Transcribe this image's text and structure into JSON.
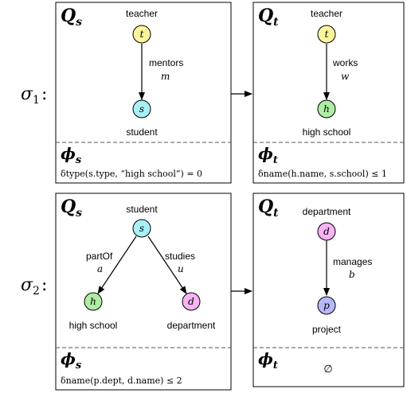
{
  "rules": [
    {
      "label_sym": "σ",
      "label_sub": "1",
      "label_colon": ":",
      "source": {
        "pattern_sym": "Q",
        "pattern_sub": "s",
        "nodes": [
          {
            "id": "t",
            "var": "t",
            "label": "teacher",
            "color": "#fbf59b"
          },
          {
            "id": "s",
            "var": "s",
            "label": "student",
            "color": "#a8f0f5"
          }
        ],
        "edges": [
          {
            "from": "t",
            "to": "s",
            "label": "mentors",
            "var": "m"
          }
        ],
        "phi_sym": "ϕ",
        "phi_sub": "s",
        "constraint": "δtype(s.type, “high school”) = 0"
      },
      "target": {
        "pattern_sym": "Q",
        "pattern_sub": "t",
        "nodes": [
          {
            "id": "t",
            "var": "t",
            "label": "teacher",
            "color": "#fbf59b"
          },
          {
            "id": "h",
            "var": "h",
            "label": "high school",
            "color": "#aeeea4"
          }
        ],
        "edges": [
          {
            "from": "t",
            "to": "h",
            "label": "works",
            "var": "w"
          }
        ],
        "phi_sym": "ϕ",
        "phi_sub": "t",
        "constraint": "δname(h.name, s.school) ≤ 1"
      }
    },
    {
      "label_sym": "σ",
      "label_sub": "2",
      "label_colon": ":",
      "source": {
        "pattern_sym": "Q",
        "pattern_sub": "s",
        "nodes": [
          {
            "id": "s",
            "var": "s",
            "label": "student",
            "color": "#a8f0f5"
          },
          {
            "id": "h",
            "var": "h",
            "label": "high school",
            "color": "#aeeea4"
          },
          {
            "id": "d",
            "var": "d",
            "label": "department",
            "color": "#f7b3f3"
          }
        ],
        "edges": [
          {
            "from": "s",
            "to": "h",
            "label": "partOf",
            "var": "a"
          },
          {
            "from": "s",
            "to": "d",
            "label": "studies",
            "var": "u"
          }
        ],
        "phi_sym": "ϕ",
        "phi_sub": "s",
        "constraint": "δname(p.dept, d.name) ≤ 2"
      },
      "target": {
        "pattern_sym": "Q",
        "pattern_sub": "t",
        "nodes": [
          {
            "id": "d",
            "var": "d",
            "label": "department",
            "color": "#f7b3f3"
          },
          {
            "id": "p",
            "var": "p",
            "label": "project",
            "color": "#b7b8f7"
          }
        ],
        "edges": [
          {
            "from": "d",
            "to": "p",
            "label": "manages",
            "var": "b"
          }
        ],
        "phi_sym": "ϕ",
        "phi_sub": "t",
        "constraint": "∅"
      }
    }
  ]
}
